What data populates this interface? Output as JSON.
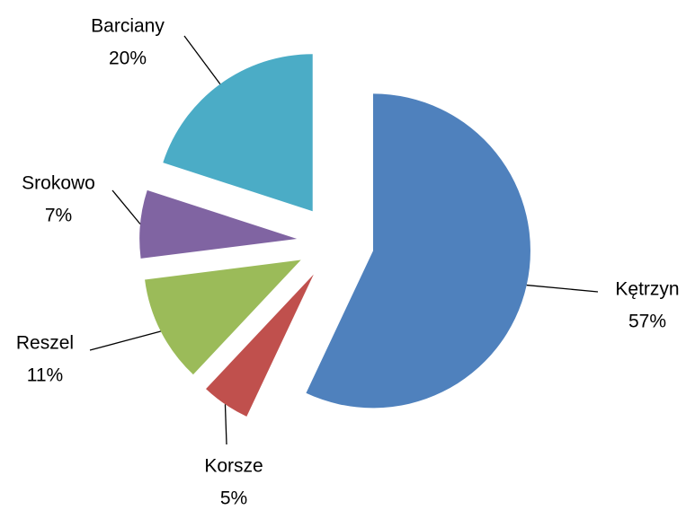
{
  "chart_data": {
    "type": "pie",
    "categories": [
      "Kętrzyn",
      "Korsze",
      "Reszel",
      "Srokowo",
      "Barciany"
    ],
    "values": [
      57,
      5,
      11,
      7,
      20
    ],
    "value_labels": [
      "57%",
      "5%",
      "11%",
      "7%",
      "20%"
    ],
    "colors": [
      "#4f81bd",
      "#c0504d",
      "#9bbb59",
      "#8064a2",
      "#4bacc6"
    ]
  }
}
